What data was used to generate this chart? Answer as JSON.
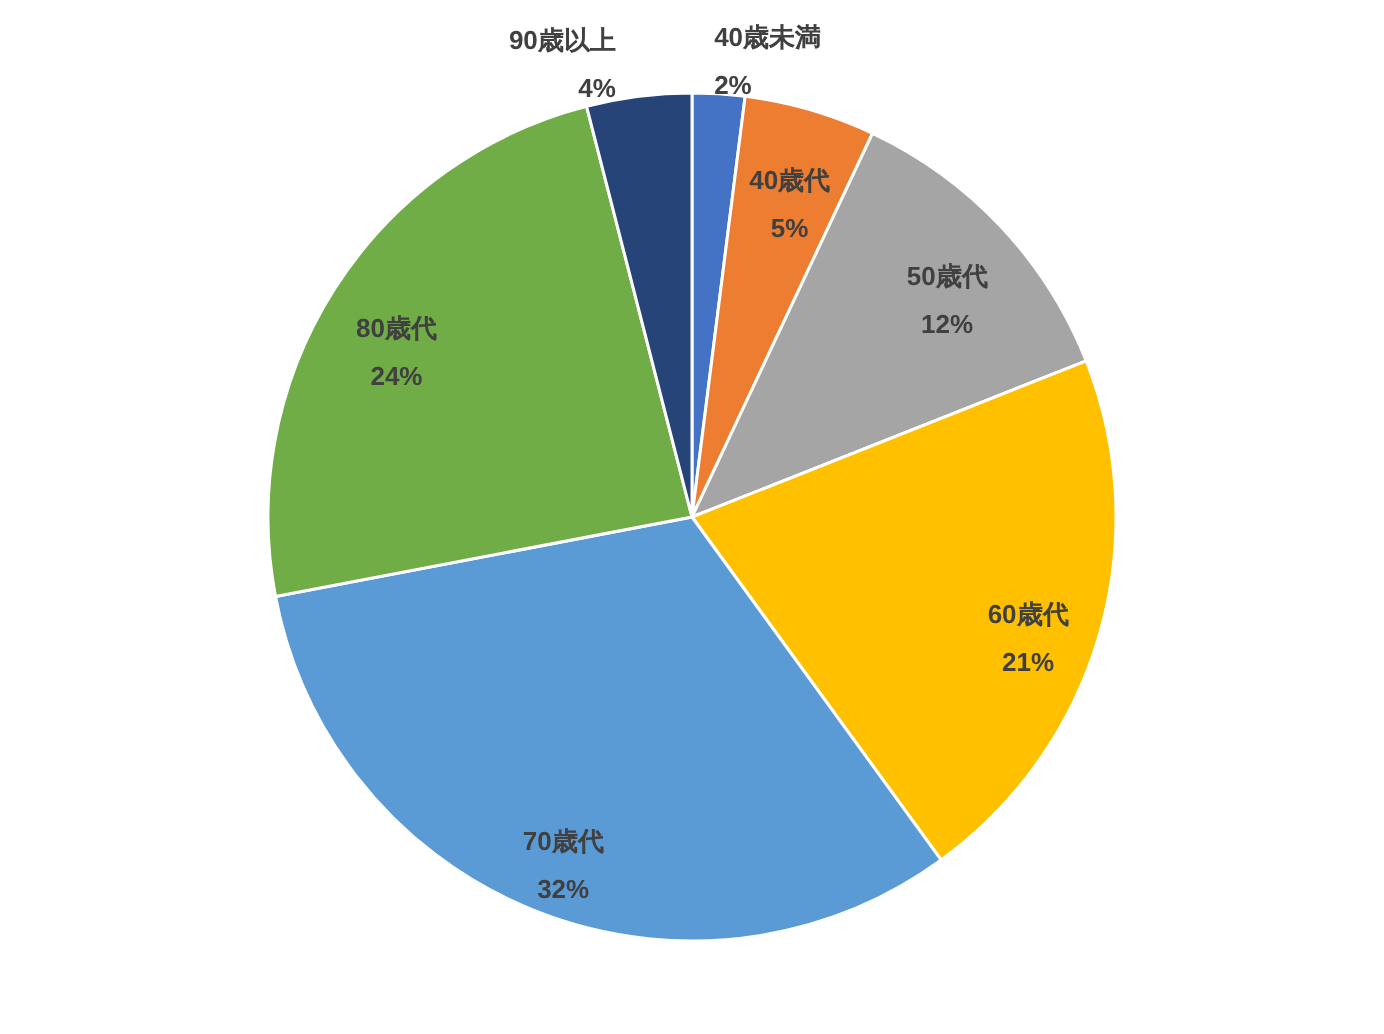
{
  "chart_data": {
    "type": "pie",
    "categories": [
      "40歳未満",
      "40歳代",
      "50歳代",
      "60歳代",
      "70歳代",
      "80歳代",
      "90歳以上"
    ],
    "values": [
      2,
      5,
      12,
      21,
      32,
      24,
      4
    ],
    "value_labels": [
      "2%",
      "5%",
      "12%",
      "21%",
      "32%",
      "24%",
      "4%"
    ],
    "colors": [
      "#4472c4",
      "#ed7d31",
      "#a5a5a5",
      "#ffc000",
      "#5b9bd5",
      "#70ad47",
      "#264478"
    ]
  }
}
